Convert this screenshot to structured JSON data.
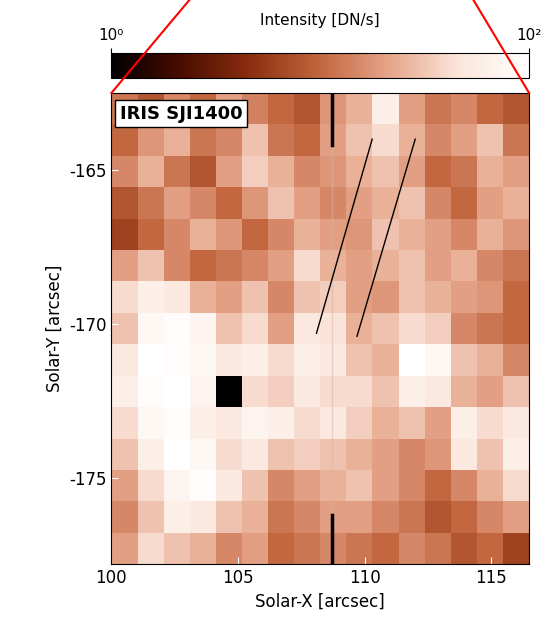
{
  "chart_data": {
    "type": "heatmap",
    "annotation": "IRIS SJI1400",
    "x_label": "Solar-X [arcsec]",
    "y_label": "Solar-Y [arcsec]",
    "xlim": [
      100,
      116.5
    ],
    "ylim": [
      -177.8,
      -162.5
    ],
    "xticks": [
      100,
      105,
      110,
      115
    ],
    "yticks": [
      -165,
      -170,
      -175
    ],
    "colorbar_label": "Intensity [DN/s]",
    "colorbar_range": [
      1,
      100
    ],
    "colorbar_ticks": [
      {
        "value": 1,
        "label": "10⁰"
      },
      {
        "value": 100,
        "label": "10²"
      }
    ],
    "log": true,
    "cells": [
      [
        12,
        8,
        15,
        10,
        20,
        14,
        10,
        8,
        18,
        25,
        60,
        20,
        12,
        15,
        10,
        8
      ],
      [
        10,
        18,
        25,
        12,
        15,
        30,
        12,
        10,
        20,
        30,
        40,
        25,
        15,
        20,
        30,
        12
      ],
      [
        15,
        25,
        12,
        8,
        20,
        35,
        25,
        15,
        18,
        25,
        30,
        20,
        10,
        12,
        25,
        20
      ],
      [
        8,
        12,
        20,
        15,
        10,
        18,
        30,
        20,
        15,
        20,
        25,
        30,
        15,
        10,
        20,
        25
      ],
      [
        6,
        10,
        15,
        25,
        18,
        10,
        15,
        25,
        20,
        18,
        30,
        25,
        20,
        15,
        25,
        18
      ],
      [
        20,
        30,
        15,
        10,
        12,
        15,
        20,
        40,
        25,
        20,
        25,
        30,
        20,
        25,
        15,
        12
      ],
      [
        40,
        60,
        50,
        25,
        20,
        30,
        15,
        30,
        35,
        20,
        18,
        30,
        25,
        20,
        18,
        10
      ],
      [
        30,
        80,
        90,
        70,
        30,
        40,
        20,
        50,
        45,
        25,
        30,
        40,
        35,
        15,
        12,
        10
      ],
      [
        50,
        100,
        90,
        80,
        50,
        60,
        40,
        60,
        50,
        30,
        25,
        100,
        80,
        30,
        25,
        15
      ],
      [
        60,
        90,
        100,
        70,
        1,
        40,
        35,
        50,
        40,
        40,
        30,
        60,
        50,
        25,
        20,
        30
      ],
      [
        40,
        80,
        90,
        60,
        50,
        70,
        60,
        40,
        50,
        35,
        25,
        30,
        20,
        60,
        40,
        50
      ],
      [
        30,
        60,
        100,
        80,
        40,
        50,
        30,
        35,
        30,
        25,
        20,
        15,
        18,
        50,
        30,
        60
      ],
      [
        20,
        40,
        70,
        90,
        50,
        30,
        15,
        20,
        25,
        30,
        20,
        15,
        10,
        15,
        25,
        40
      ],
      [
        15,
        30,
        60,
        50,
        30,
        25,
        12,
        15,
        20,
        20,
        15,
        12,
        8,
        10,
        15,
        20
      ],
      [
        20,
        40,
        30,
        25,
        15,
        20,
        10,
        12,
        15,
        12,
        10,
        15,
        12,
        8,
        10,
        6
      ]
    ],
    "overlay_lines": [
      {
        "x": [
          108.1,
          110.3
        ],
        "y": [
          -170.3,
          -164.0
        ]
      },
      {
        "x": [
          109.7,
          112.0
        ],
        "y": [
          -170.4,
          -164.0
        ]
      }
    ],
    "slit": {
      "x": 108.7,
      "y_top": [
        -164.2,
        -162.5
      ],
      "y_bottom": [
        -177.8,
        -176.2
      ]
    }
  }
}
